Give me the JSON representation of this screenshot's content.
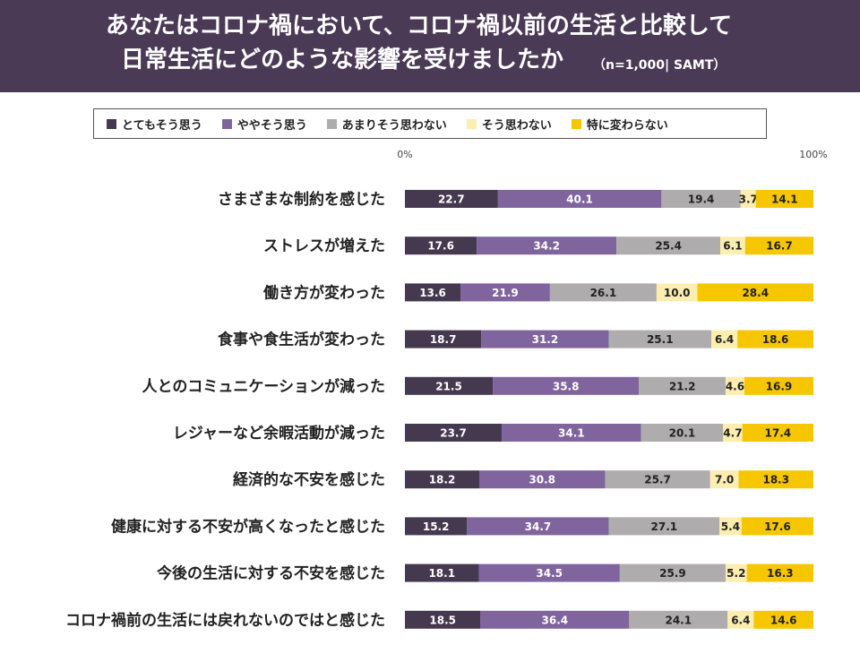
{
  "header": {
    "title_line1": "あなたはコロナ禍において、コロナ禍以前の生活と比較して",
    "title_line2": "日常生活にどのような影響を受けましたか",
    "subtitle": "（n=1,000| SAMT）"
  },
  "colors": {
    "header_bg": "#4a3a56",
    "series": [
      "#45394f",
      "#80649e",
      "#aeacad",
      "#fcedb0",
      "#f6c600"
    ],
    "label_text": [
      "#ffffff",
      "#ffffff",
      "#222222",
      "#222222",
      "#222222"
    ]
  },
  "chart_data": {
    "type": "bar",
    "orientation": "horizontal",
    "stacked": true,
    "title": "あなたはコロナ禍において、コロナ禍以前の生活と比較して日常生活にどのような影響を受けましたか",
    "axis_min_label": "0%",
    "axis_max_label": "100%",
    "xlim": [
      0,
      100
    ],
    "legend_position": "top",
    "categories": [
      "さまざまな制約を感じた",
      "ストレスが増えた",
      "働き方が変わった",
      "食事や食生活が変わった",
      "人とのコミュニケーションが減った",
      "レジャーなど余暇活動が減った",
      "経済的な不安を感じた",
      "健康に対する不安が高くなったと感じた",
      "今後の生活に対する不安を感じた",
      "コロナ禍前の生活には戻れないのではと感じた"
    ],
    "series": [
      {
        "name": "とてもそう思う",
        "values": [
          22.7,
          17.6,
          13.6,
          18.7,
          21.5,
          23.7,
          18.2,
          15.2,
          18.1,
          18.5
        ]
      },
      {
        "name": "ややそう思う",
        "values": [
          40.1,
          34.2,
          21.9,
          31.2,
          35.8,
          34.1,
          30.8,
          34.7,
          34.5,
          36.4
        ]
      },
      {
        "name": "あまりそう思わない",
        "values": [
          19.4,
          25.4,
          26.1,
          25.1,
          21.2,
          20.1,
          25.7,
          27.1,
          25.9,
          24.1
        ]
      },
      {
        "name": "そう思わない",
        "values": [
          3.7,
          6.1,
          10.0,
          6.4,
          4.6,
          4.7,
          7.0,
          5.4,
          5.2,
          6.4
        ]
      },
      {
        "name": "特に変わらない",
        "values": [
          14.1,
          16.7,
          28.4,
          18.6,
          16.9,
          17.4,
          18.3,
          17.6,
          16.3,
          14.6
        ]
      }
    ]
  }
}
